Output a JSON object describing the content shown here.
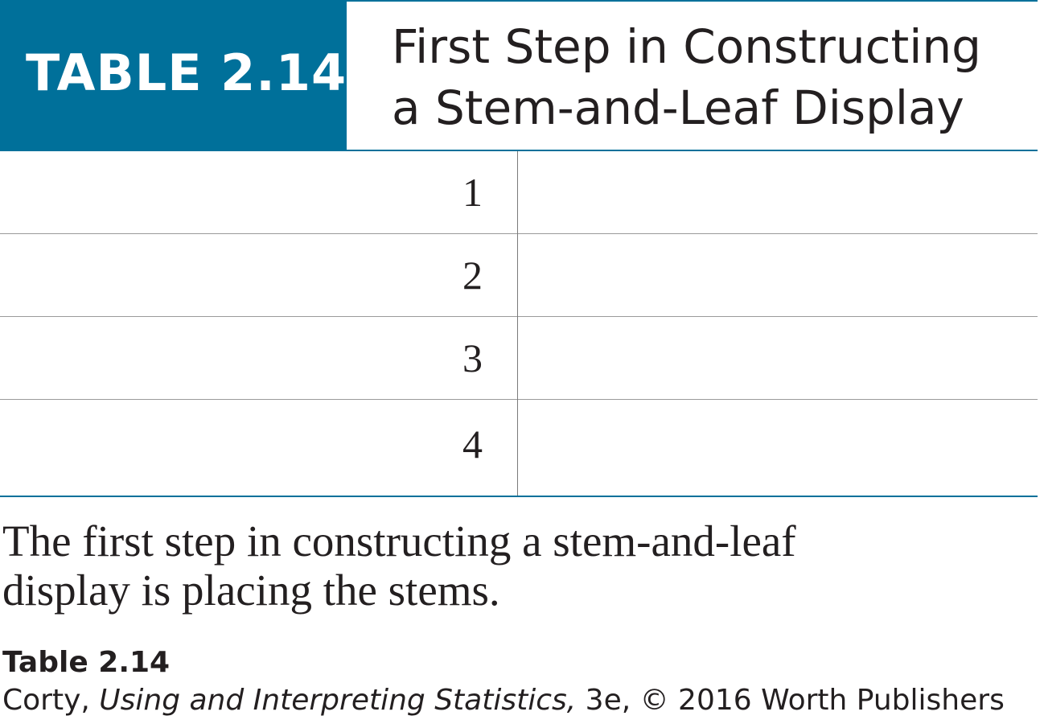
{
  "colors": {
    "accent": "#00709a",
    "text": "#231f20",
    "row_rule": "#9a9a9a"
  },
  "table": {
    "label": "TABLE 2.14",
    "title_lines": [
      "First Step in Constructing",
      "a Stem-and-Leaf Display"
    ],
    "stems": [
      "1",
      "2",
      "3",
      "4"
    ]
  },
  "caption_lines": [
    "The first step in constructing a stem-and-leaf",
    "display is placing the stems."
  ],
  "source": {
    "title": "Table 2.14",
    "author": "Corty, ",
    "book": "Using and Interpreting Statistics,",
    "rest": " 3e, © 2016 Worth Publishers"
  }
}
